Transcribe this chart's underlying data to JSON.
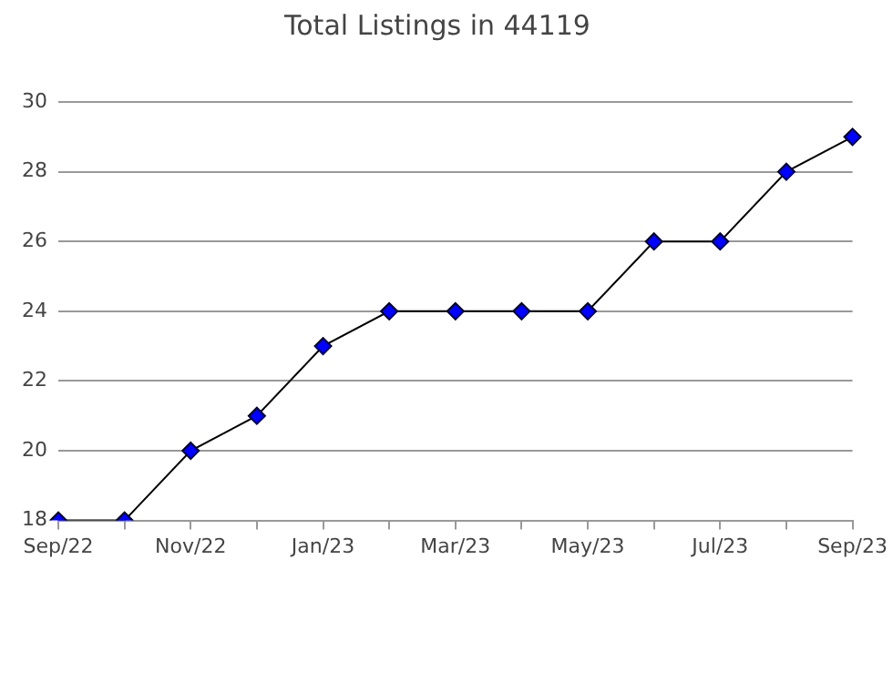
{
  "chart_data": {
    "type": "line",
    "title": "Total Listings in 44119",
    "categories": [
      "Sep/22",
      null,
      "Nov/22",
      null,
      "Jan/23",
      null,
      "Mar/23",
      null,
      "May/23",
      null,
      "Jul/23",
      null,
      "Sep/23"
    ],
    "values": [
      18,
      18,
      20,
      21,
      23,
      24,
      24,
      24,
      24,
      26,
      26,
      28,
      29
    ],
    "color": "#0000ff",
    "marker": "diamond",
    "ylim": [
      18,
      30
    ],
    "yticks": [
      18,
      20,
      22,
      24,
      26,
      28,
      30
    ],
    "grid": "y"
  }
}
